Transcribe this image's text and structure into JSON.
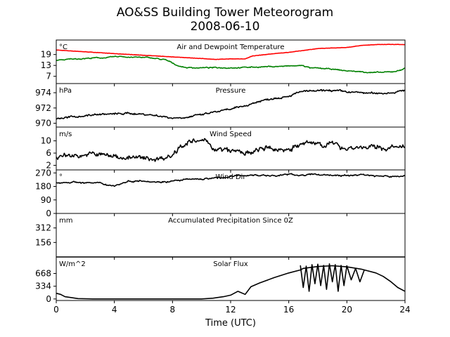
{
  "figure": {
    "title_line1": "AO&SS Building Tower Meteorogram",
    "title_line2": "2008-06-10",
    "xlabel": "Time (UTC)",
    "xticks": [
      0,
      4,
      8,
      12,
      16,
      20,
      24
    ],
    "xlim": [
      0,
      24
    ]
  },
  "chart_data": [
    {
      "type": "line",
      "title": "Air and Dewpoint Temperature",
      "unit": "°C",
      "ylim": [
        3,
        27
      ],
      "yticks": [
        7,
        13,
        19
      ],
      "series": [
        {
          "color": "#ff0000",
          "noise": 0.15,
          "jitter": 0,
          "points": [
            [
              0,
              21.5
            ],
            [
              2,
              20.5
            ],
            [
              4,
              19.5
            ],
            [
              6,
              18.6
            ],
            [
              8,
              17.7
            ],
            [
              10,
              16.8
            ],
            [
              11,
              16.3
            ],
            [
              12,
              16.6
            ],
            [
              13,
              16.6
            ],
            [
              13.5,
              18.2
            ],
            [
              15,
              19.5
            ],
            [
              16,
              20.2
            ],
            [
              18,
              22.3
            ],
            [
              20,
              22.9
            ],
            [
              21,
              24.0
            ],
            [
              22,
              24.5
            ],
            [
              23,
              24.6
            ],
            [
              24,
              24.5
            ]
          ]
        },
        {
          "color": "#008000",
          "noise": 0.25,
          "jitter": 0.35,
          "points": [
            [
              0,
              15.8
            ],
            [
              1,
              16.4
            ],
            [
              2,
              16.9
            ],
            [
              3.5,
              17.3
            ],
            [
              4.5,
              18.0
            ],
            [
              5,
              17.6
            ],
            [
              6.5,
              17.2
            ],
            [
              7.5,
              16.0
            ],
            [
              8,
              14.3
            ],
            [
              8.5,
              12.5
            ],
            [
              9,
              11.8
            ],
            [
              10,
              11.7
            ],
            [
              12,
              11.8
            ],
            [
              13,
              11.9
            ],
            [
              14,
              12.2
            ],
            [
              16,
              12.6
            ],
            [
              17,
              12.9
            ],
            [
              17.5,
              11.5
            ],
            [
              18,
              11.4
            ],
            [
              19,
              10.9
            ],
            [
              20,
              10.0
            ],
            [
              21,
              9.5
            ],
            [
              22,
              9.0
            ],
            [
              23,
              9.3
            ],
            [
              23.6,
              10.2
            ],
            [
              24,
              11.5
            ]
          ]
        }
      ]
    },
    {
      "type": "line",
      "title": "Pressure",
      "unit": "hPa",
      "ylim": [
        969.5,
        975.2
      ],
      "yticks": [
        970,
        972,
        974
      ],
      "series": [
        {
          "color": "#000000",
          "noise": 0.15,
          "jitter": 0.12,
          "points": [
            [
              0,
              970.6
            ],
            [
              1,
              970.8
            ],
            [
              2,
              971.0
            ],
            [
              3,
              971.2
            ],
            [
              4,
              971.2
            ],
            [
              5,
              971.3
            ],
            [
              6,
              971.2
            ],
            [
              7,
              971.0
            ],
            [
              8,
              970.7
            ],
            [
              9,
              970.8
            ],
            [
              10,
              971.1
            ],
            [
              11,
              971.5
            ],
            [
              12,
              971.8
            ],
            [
              13,
              972.3
            ],
            [
              14,
              972.9
            ],
            [
              15,
              973.3
            ],
            [
              16,
              973.6
            ],
            [
              17,
              974.2
            ],
            [
              18,
              974.2
            ],
            [
              19,
              974.3
            ],
            [
              20,
              974.1
            ],
            [
              21,
              974.0
            ],
            [
              22,
              973.9
            ],
            [
              23,
              974.0
            ],
            [
              24,
              974.3
            ]
          ]
        }
      ]
    },
    {
      "type": "line",
      "title": "Wind Speed",
      "unit": "m/s",
      "ylim": [
        0.5,
        14.5
      ],
      "yticks": [
        2,
        6,
        10
      ],
      "series": [
        {
          "color": "#000000",
          "noise": 0.8,
          "jitter": 1.0,
          "points": [
            [
              0,
              5
            ],
            [
              1,
              5.3
            ],
            [
              2,
              5.5
            ],
            [
              3,
              5.5
            ],
            [
              4,
              4.9
            ],
            [
              5,
              4.6
            ],
            [
              6,
              4.1
            ],
            [
              7,
              4.2
            ],
            [
              8,
              5.4
            ],
            [
              8.5,
              8.5
            ],
            [
              9,
              9.5
            ],
            [
              10,
              9.7
            ],
            [
              10.5,
              9.5
            ],
            [
              11,
              7.0
            ],
            [
              12,
              6.7
            ],
            [
              13,
              6.1
            ],
            [
              13.5,
              5.6
            ],
            [
              14,
              7.5
            ],
            [
              15,
              7.0
            ],
            [
              16,
              7.5
            ],
            [
              17,
              8.9
            ],
            [
              18,
              9.3
            ],
            [
              19,
              8.8
            ],
            [
              20,
              7.8
            ],
            [
              21,
              8.0
            ],
            [
              22,
              7.6
            ],
            [
              23,
              7.8
            ],
            [
              24,
              7.5
            ]
          ]
        }
      ]
    },
    {
      "type": "line",
      "title": "Wind Dir",
      "unit": "°",
      "ylim": [
        0,
        290
      ],
      "yticks": [
        0,
        90,
        180,
        270
      ],
      "series": [
        {
          "color": "#000000",
          "noise": 5,
          "jitter": 6,
          "points": [
            [
              0,
              205
            ],
            [
              1,
              210
            ],
            [
              2,
              205
            ],
            [
              3,
              200
            ],
            [
              4,
              185
            ],
            [
              5,
              215
            ],
            [
              6,
              220
            ],
            [
              7,
              210
            ],
            [
              8,
              215
            ],
            [
              9,
              225
            ],
            [
              10,
              230
            ],
            [
              11,
              235
            ],
            [
              12,
              245
            ],
            [
              13,
              255
            ],
            [
              14,
              255
            ],
            [
              15,
              250
            ],
            [
              16,
              260
            ],
            [
              17,
              255
            ],
            [
              18,
              260
            ],
            [
              19,
              255
            ],
            [
              20,
              250
            ],
            [
              21,
              260
            ],
            [
              22,
              250
            ],
            [
              23,
              245
            ],
            [
              24,
              250
            ]
          ]
        }
      ]
    },
    {
      "type": "line",
      "title": "Accumulated Precipitation Since 0Z",
      "unit": "mm",
      "ylim": [
        0,
        468
      ],
      "yticks": [
        156,
        312
      ],
      "series": [
        {
          "color": "#000000",
          "noise": 0,
          "jitter": 0,
          "points": [
            [
              0,
              0
            ],
            [
              24,
              0
            ]
          ]
        }
      ]
    },
    {
      "type": "line",
      "title": "Solar Flux",
      "unit": "W/m^2",
      "ylim": [
        -40,
        1100
      ],
      "yticks": [
        0,
        334,
        668
      ],
      "series": [
        {
          "color": "#000000",
          "noise": 0,
          "jitter": 0,
          "points": [
            [
              0,
              150
            ],
            [
              0.3,
              120
            ],
            [
              0.6,
              60
            ],
            [
              1.5,
              10
            ],
            [
              2.5,
              0
            ],
            [
              10,
              0
            ],
            [
              10.8,
              20
            ],
            [
              11.5,
              60
            ],
            [
              12,
              100
            ],
            [
              12.5,
              200
            ],
            [
              13,
              120
            ],
            [
              13.4,
              320
            ],
            [
              14,
              420
            ],
            [
              15,
              560
            ],
            [
              16,
              680
            ],
            [
              16.8,
              760
            ],
            [
              17,
              800
            ],
            [
              18,
              850
            ],
            [
              19,
              870
            ],
            [
              20,
              840
            ],
            [
              21,
              780
            ],
            [
              22,
              680
            ],
            [
              22.5,
              590
            ],
            [
              23,
              460
            ],
            [
              23.5,
              300
            ],
            [
              24,
              200
            ]
          ]
        },
        {
          "color": "#000000",
          "noise": 0,
          "jitter": 0,
          "points": [
            [
              16.8,
              880
            ],
            [
              17.0,
              300
            ],
            [
              17.2,
              860
            ],
            [
              17.4,
              200
            ],
            [
              17.6,
              900
            ],
            [
              17.8,
              400
            ],
            [
              18.0,
              910
            ],
            [
              18.2,
              350
            ],
            [
              18.4,
              880
            ],
            [
              18.6,
              250
            ],
            [
              18.8,
              920
            ],
            [
              19.0,
              450
            ],
            [
              19.2,
              900
            ],
            [
              19.4,
              200
            ],
            [
              19.6,
              880
            ],
            [
              19.8,
              350
            ],
            [
              20.0,
              870
            ],
            [
              20.3,
              500
            ],
            [
              20.6,
              800
            ],
            [
              20.9,
              450
            ],
            [
              21.2,
              760
            ]
          ]
        }
      ]
    }
  ]
}
